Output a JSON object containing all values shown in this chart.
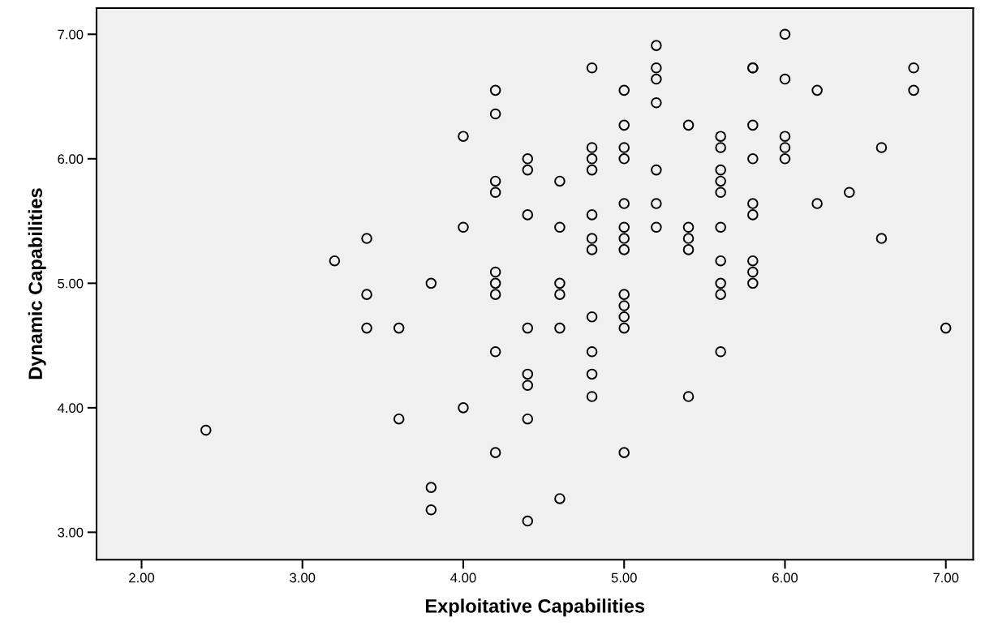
{
  "chart_data": {
    "type": "scatter",
    "xlabel": "Exploitative Capabilities",
    "ylabel": "Dynamic Capabilities",
    "xlim": [
      1.72,
      7.17
    ],
    "ylim": [
      2.78,
      7.21
    ],
    "xticks": [
      {
        "value": 2,
        "label": "2.00"
      },
      {
        "value": 3,
        "label": "3.00"
      },
      {
        "value": 4,
        "label": "4.00"
      },
      {
        "value": 5,
        "label": "5.00"
      },
      {
        "value": 6,
        "label": "6.00"
      },
      {
        "value": 7,
        "label": "7.00"
      }
    ],
    "yticks": [
      {
        "value": 3,
        "label": "3.00"
      },
      {
        "value": 4,
        "label": "4.00"
      },
      {
        "value": 5,
        "label": "5.00"
      },
      {
        "value": 6,
        "label": "6.00"
      },
      {
        "value": 7,
        "label": "7.00"
      }
    ],
    "grid": false,
    "marker": "circle",
    "series": [
      {
        "color": "#000000",
        "x": [
          2.4,
          3.2,
          3.4,
          3.4,
          3.4,
          3.6,
          3.6,
          3.8,
          3.8,
          3.8,
          4.0,
          4.0,
          4.0,
          4.2,
          4.2,
          4.2,
          4.2,
          4.2,
          4.2,
          4.2,
          4.2,
          4.2,
          4.4,
          4.4,
          4.4,
          4.4,
          4.4,
          4.4,
          4.4,
          4.4,
          4.6,
          4.6,
          4.6,
          4.6,
          4.6,
          4.6,
          4.8,
          4.8,
          4.8,
          4.8,
          4.8,
          4.8,
          4.8,
          4.8,
          4.8,
          4.8,
          4.8,
          5.0,
          5.0,
          5.0,
          5.0,
          5.0,
          5.0,
          5.0,
          5.0,
          5.0,
          5.0,
          5.0,
          5.0,
          5.0,
          5.2,
          5.2,
          5.2,
          5.2,
          5.2,
          5.2,
          5.2,
          5.4,
          5.4,
          5.4,
          5.4,
          5.4,
          5.6,
          5.6,
          5.6,
          5.6,
          5.6,
          5.6,
          5.6,
          5.6,
          5.6,
          5.6,
          5.8,
          5.8,
          5.8,
          5.8,
          5.8,
          5.8,
          5.8,
          5.8,
          5.8,
          6.0,
          6.0,
          6.0,
          6.0,
          6.0,
          6.2,
          6.2,
          6.4,
          6.6,
          6.6,
          6.8,
          6.8,
          7.0
        ],
        "values": [
          3.82,
          5.18,
          5.36,
          4.91,
          4.64,
          4.64,
          3.91,
          5.0,
          3.36,
          3.18,
          6.18,
          5.45,
          4.0,
          6.55,
          6.36,
          5.82,
          5.73,
          5.09,
          5.0,
          4.91,
          4.45,
          3.64,
          6.0,
          5.91,
          5.55,
          4.64,
          4.27,
          4.18,
          3.91,
          3.09,
          5.82,
          5.45,
          5.0,
          4.91,
          4.64,
          3.27,
          6.73,
          6.09,
          6.0,
          5.91,
          5.55,
          5.36,
          5.27,
          4.73,
          4.45,
          4.27,
          4.09,
          6.55,
          6.27,
          6.09,
          6.0,
          5.64,
          5.45,
          5.36,
          5.27,
          4.91,
          4.82,
          4.73,
          4.64,
          3.64,
          6.91,
          6.73,
          6.64,
          6.45,
          5.91,
          5.64,
          5.45,
          6.27,
          5.45,
          5.36,
          5.27,
          4.09,
          6.18,
          6.09,
          5.91,
          5.82,
          5.73,
          5.45,
          5.18,
          5.0,
          4.91,
          4.45,
          6.73,
          6.27,
          6.0,
          5.64,
          5.55,
          5.18,
          5.09,
          5.0,
          6.73,
          7.0,
          6.64,
          6.18,
          6.09,
          6.0,
          6.55,
          5.64,
          5.73,
          6.09,
          5.36,
          6.73,
          6.55,
          4.64
        ]
      }
    ]
  }
}
